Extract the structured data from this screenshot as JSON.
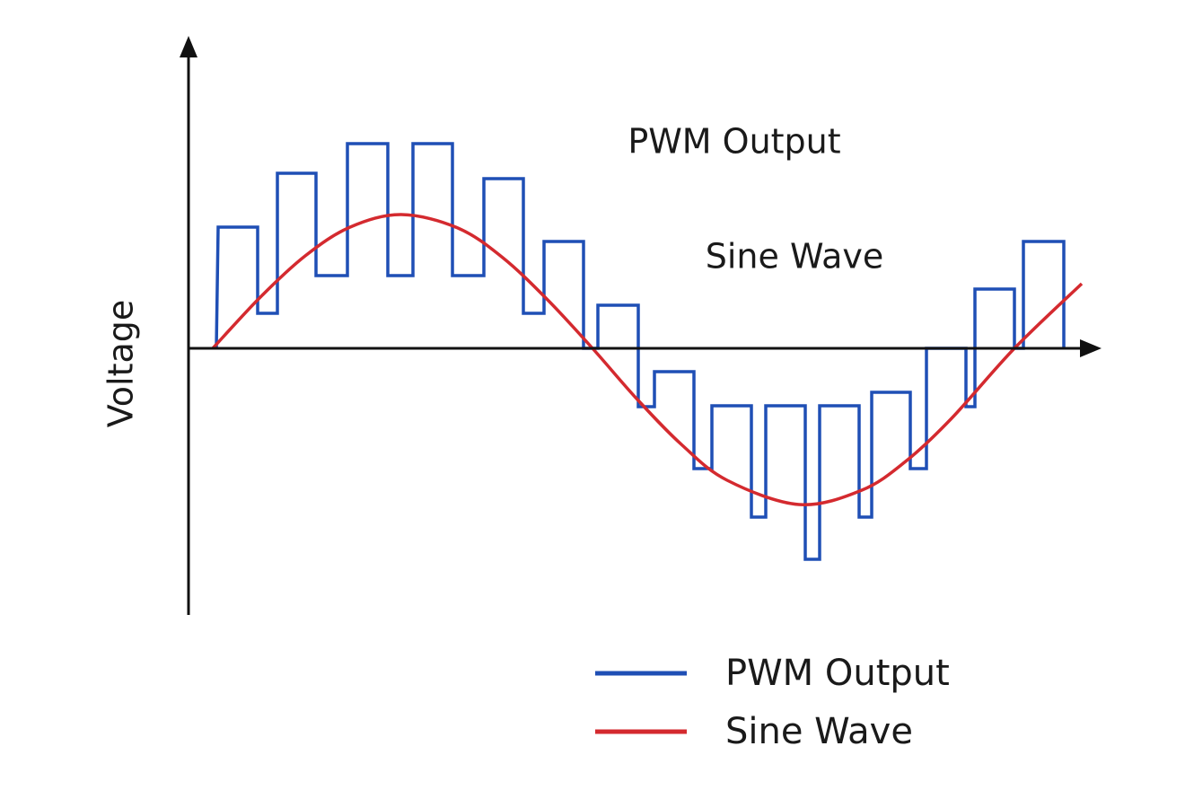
{
  "chart_data": {
    "type": "line",
    "ylabel": "Voltage",
    "annotations": [
      "PWM Output",
      "Sine Wave"
    ],
    "xlim": [
      0,
      10.15
    ],
    "ylim": [
      -2.97,
      3.43
    ],
    "series": [
      {
        "name": "PWM Output",
        "color": "#1f4fb5",
        "shape": "step",
        "x": [
          0.31,
          0.33,
          0.77,
          0.77,
          0.99,
          0.99,
          1.42,
          1.42,
          1.77,
          1.77,
          2.22,
          2.22,
          2.5,
          2.5,
          2.94,
          2.94,
          3.29,
          3.29,
          3.73,
          3.73,
          3.96,
          3.96,
          4.4,
          4.4,
          4.56,
          4.56,
          5.01,
          5.01,
          5.19,
          5.19,
          5.63,
          5.63,
          5.83,
          5.83,
          6.27,
          6.27,
          6.43,
          6.43,
          6.87,
          6.87,
          7.03,
          7.03,
          7.47,
          7.47,
          7.61,
          7.61,
          8.04,
          8.04,
          8.22,
          8.22,
          8.66,
          8.66,
          8.76,
          8.76,
          9.2,
          9.2,
          9.3,
          9.3,
          9.75,
          9.75
        ],
        "values": [
          0,
          1.35,
          1.35,
          0.39,
          0.39,
          1.95,
          1.95,
          0.81,
          0.81,
          2.28,
          2.28,
          0.81,
          0.81,
          2.28,
          2.28,
          0.81,
          0.81,
          1.89,
          1.89,
          0.39,
          0.39,
          1.19,
          1.19,
          0,
          0,
          0.48,
          0.48,
          -0.65,
          -0.65,
          -0.26,
          -0.26,
          -1.34,
          -1.34,
          -0.64,
          -0.64,
          -1.88,
          -1.88,
          -0.64,
          -0.64,
          -2.35,
          -2.35,
          -0.64,
          -0.64,
          -1.88,
          -1.88,
          -0.49,
          -0.49,
          -1.34,
          -1.34,
          0,
          0,
          -0.65,
          -0.65,
          0.66,
          0.66,
          0,
          0,
          1.19,
          1.19,
          0
        ]
      },
      {
        "name": "Sine Wave",
        "color": "#d42a2f",
        "shape": "smooth",
        "x": [
          0.27,
          0.8,
          1.3,
          1.8,
          2.37,
          3.0,
          3.5,
          4.0,
          4.5,
          5.0,
          5.5,
          6.0,
          6.8,
          7.5,
          8.0,
          8.5,
          9.2,
          9.95
        ],
        "values": [
          0,
          0.57,
          1.03,
          1.35,
          1.49,
          1.34,
          1.01,
          0.54,
          0,
          -0.57,
          -1.08,
          -1.47,
          -1.74,
          -1.58,
          -1.25,
          -0.78,
          0,
          0.72
        ]
      }
    ]
  }
}
